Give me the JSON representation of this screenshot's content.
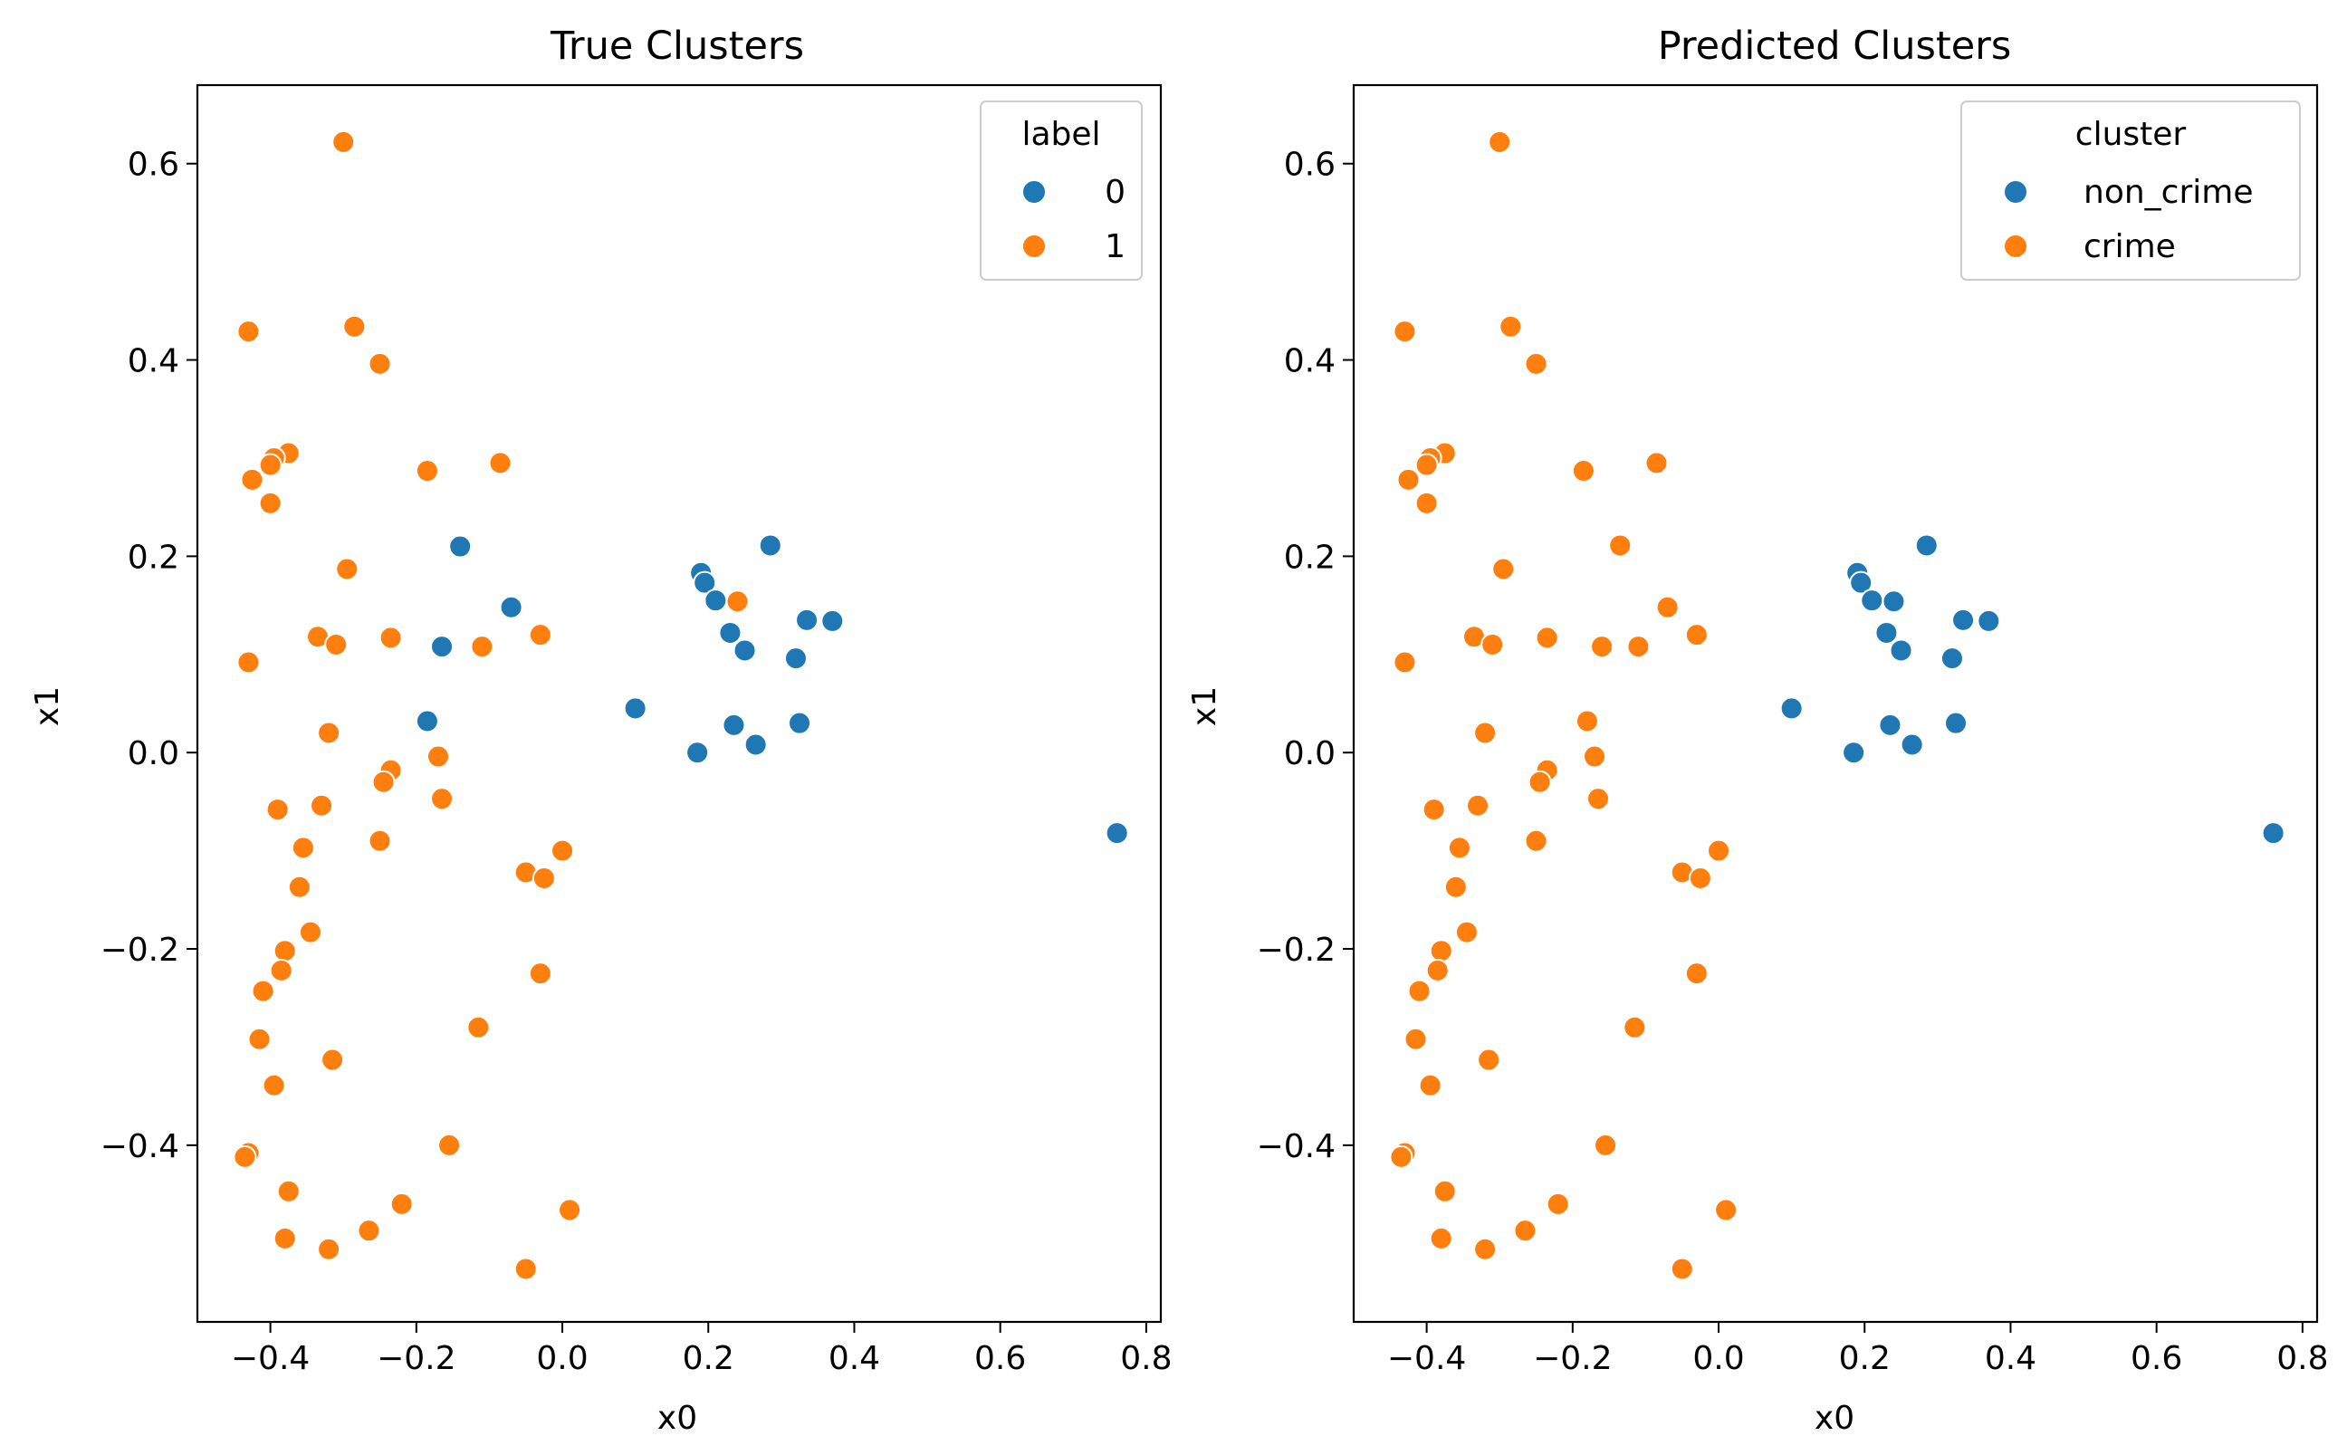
{
  "colors": {
    "class_0": "#1f77b4",
    "class_1": "#ff7f0e",
    "frame": "#000000",
    "legend_border": "#cccccc"
  },
  "chart_data": [
    {
      "type": "scatter",
      "title": "True Clusters",
      "xlabel": "x0",
      "ylabel": "x1",
      "xlim": [
        -0.5,
        0.82
      ],
      "ylim": [
        -0.58,
        0.68
      ],
      "xticks": [
        "−0.4",
        "−0.2",
        "0.0",
        "0.2",
        "0.4",
        "0.6",
        "0.8"
      ],
      "yticks": [
        "−0.4",
        "−0.2",
        "0.0",
        "0.2",
        "0.4",
        "0.6"
      ],
      "legend": {
        "title": "label",
        "position": "upper right",
        "entries": [
          "0",
          "1"
        ]
      },
      "series": [
        {
          "name": "0",
          "x": [
            -0.14,
            -0.07,
            0.19,
            0.195,
            0.21,
            0.285,
            0.23,
            0.335,
            0.37,
            0.25,
            0.32,
            0.1,
            0.185,
            0.235,
            0.265,
            0.325,
            -0.165,
            -0.185,
            0.76
          ],
          "y": [
            0.21,
            0.148,
            0.183,
            0.173,
            0.155,
            0.211,
            0.122,
            0.135,
            0.134,
            0.104,
            0.096,
            0.045,
            0.0,
            0.028,
            0.008,
            0.03,
            0.108,
            0.032,
            -0.082
          ]
        },
        {
          "name": "1",
          "x": [
            -0.3,
            -0.43,
            -0.285,
            -0.25,
            -0.375,
            -0.395,
            -0.4,
            -0.425,
            -0.4,
            -0.185,
            -0.085,
            -0.295,
            -0.335,
            -0.31,
            -0.235,
            -0.11,
            -0.03,
            -0.43,
            -0.32,
            -0.17,
            -0.235,
            -0.245,
            -0.165,
            -0.39,
            -0.33,
            -0.355,
            -0.25,
            0.0,
            -0.05,
            -0.025,
            -0.36,
            -0.345,
            -0.38,
            -0.385,
            -0.41,
            -0.03,
            -0.415,
            -0.315,
            -0.115,
            -0.395,
            -0.43,
            -0.435,
            -0.155,
            -0.375,
            -0.22,
            -0.38,
            -0.265,
            -0.32,
            0.01,
            -0.05,
            0.24
          ],
          "y": [
            0.622,
            0.429,
            0.434,
            0.396,
            0.305,
            0.3,
            0.293,
            0.278,
            0.254,
            0.287,
            0.295,
            0.187,
            0.118,
            0.11,
            0.117,
            0.108,
            0.12,
            0.092,
            0.02,
            -0.004,
            -0.018,
            -0.03,
            -0.047,
            -0.058,
            -0.054,
            -0.097,
            -0.09,
            -0.1,
            -0.122,
            -0.128,
            -0.137,
            -0.183,
            -0.202,
            -0.222,
            -0.243,
            -0.225,
            -0.292,
            -0.313,
            -0.28,
            -0.339,
            -0.408,
            -0.412,
            -0.4,
            -0.447,
            -0.46,
            -0.495,
            -0.487,
            -0.506,
            -0.466,
            -0.526,
            0.154
          ]
        }
      ]
    },
    {
      "type": "scatter",
      "title": "Predicted Clusters",
      "xlabel": "x0",
      "ylabel": "x1",
      "xlim": [
        -0.5,
        0.82
      ],
      "ylim": [
        -0.58,
        0.68
      ],
      "xticks": [
        "−0.4",
        "−0.2",
        "0.0",
        "0.2",
        "0.4",
        "0.6",
        "0.8"
      ],
      "yticks": [
        "−0.4",
        "−0.2",
        "0.0",
        "0.2",
        "0.4",
        "0.6"
      ],
      "legend": {
        "title": "cluster",
        "position": "upper right",
        "entries": [
          "non_crime",
          "crime"
        ]
      },
      "series": [
        {
          "name": "non_crime",
          "x": [
            0.19,
            0.195,
            0.21,
            0.285,
            0.24,
            0.23,
            0.335,
            0.37,
            0.25,
            0.32,
            0.1,
            0.185,
            0.235,
            0.265,
            0.325,
            0.76
          ],
          "y": [
            0.183,
            0.173,
            0.155,
            0.211,
            0.154,
            0.122,
            0.135,
            0.134,
            0.104,
            0.096,
            0.045,
            0.0,
            0.028,
            0.008,
            0.03,
            -0.082
          ]
        },
        {
          "name": "crime",
          "x": [
            -0.3,
            -0.43,
            -0.285,
            -0.25,
            -0.375,
            -0.395,
            -0.4,
            -0.425,
            -0.4,
            -0.185,
            -0.085,
            -0.135,
            -0.295,
            -0.07,
            -0.335,
            -0.31,
            -0.235,
            -0.16,
            -0.11,
            -0.03,
            -0.43,
            -0.32,
            -0.18,
            -0.17,
            -0.235,
            -0.245,
            -0.165,
            -0.39,
            -0.33,
            -0.355,
            -0.25,
            0.0,
            -0.05,
            -0.025,
            -0.36,
            -0.345,
            -0.38,
            -0.385,
            -0.41,
            -0.03,
            -0.415,
            -0.315,
            -0.115,
            -0.395,
            -0.43,
            -0.435,
            -0.155,
            -0.375,
            -0.22,
            -0.38,
            -0.265,
            -0.32,
            0.01,
            -0.05
          ],
          "y": [
            0.622,
            0.429,
            0.434,
            0.396,
            0.305,
            0.3,
            0.293,
            0.278,
            0.254,
            0.287,
            0.295,
            0.211,
            0.187,
            0.148,
            0.118,
            0.11,
            0.117,
            0.108,
            0.108,
            0.12,
            0.092,
            0.02,
            0.032,
            -0.004,
            -0.018,
            -0.03,
            -0.047,
            -0.058,
            -0.054,
            -0.097,
            -0.09,
            -0.1,
            -0.122,
            -0.128,
            -0.137,
            -0.183,
            -0.202,
            -0.222,
            -0.243,
            -0.225,
            -0.292,
            -0.313,
            -0.28,
            -0.339,
            -0.408,
            -0.412,
            -0.4,
            -0.447,
            -0.46,
            -0.495,
            -0.487,
            -0.506,
            -0.466,
            -0.526
          ]
        }
      ]
    }
  ]
}
